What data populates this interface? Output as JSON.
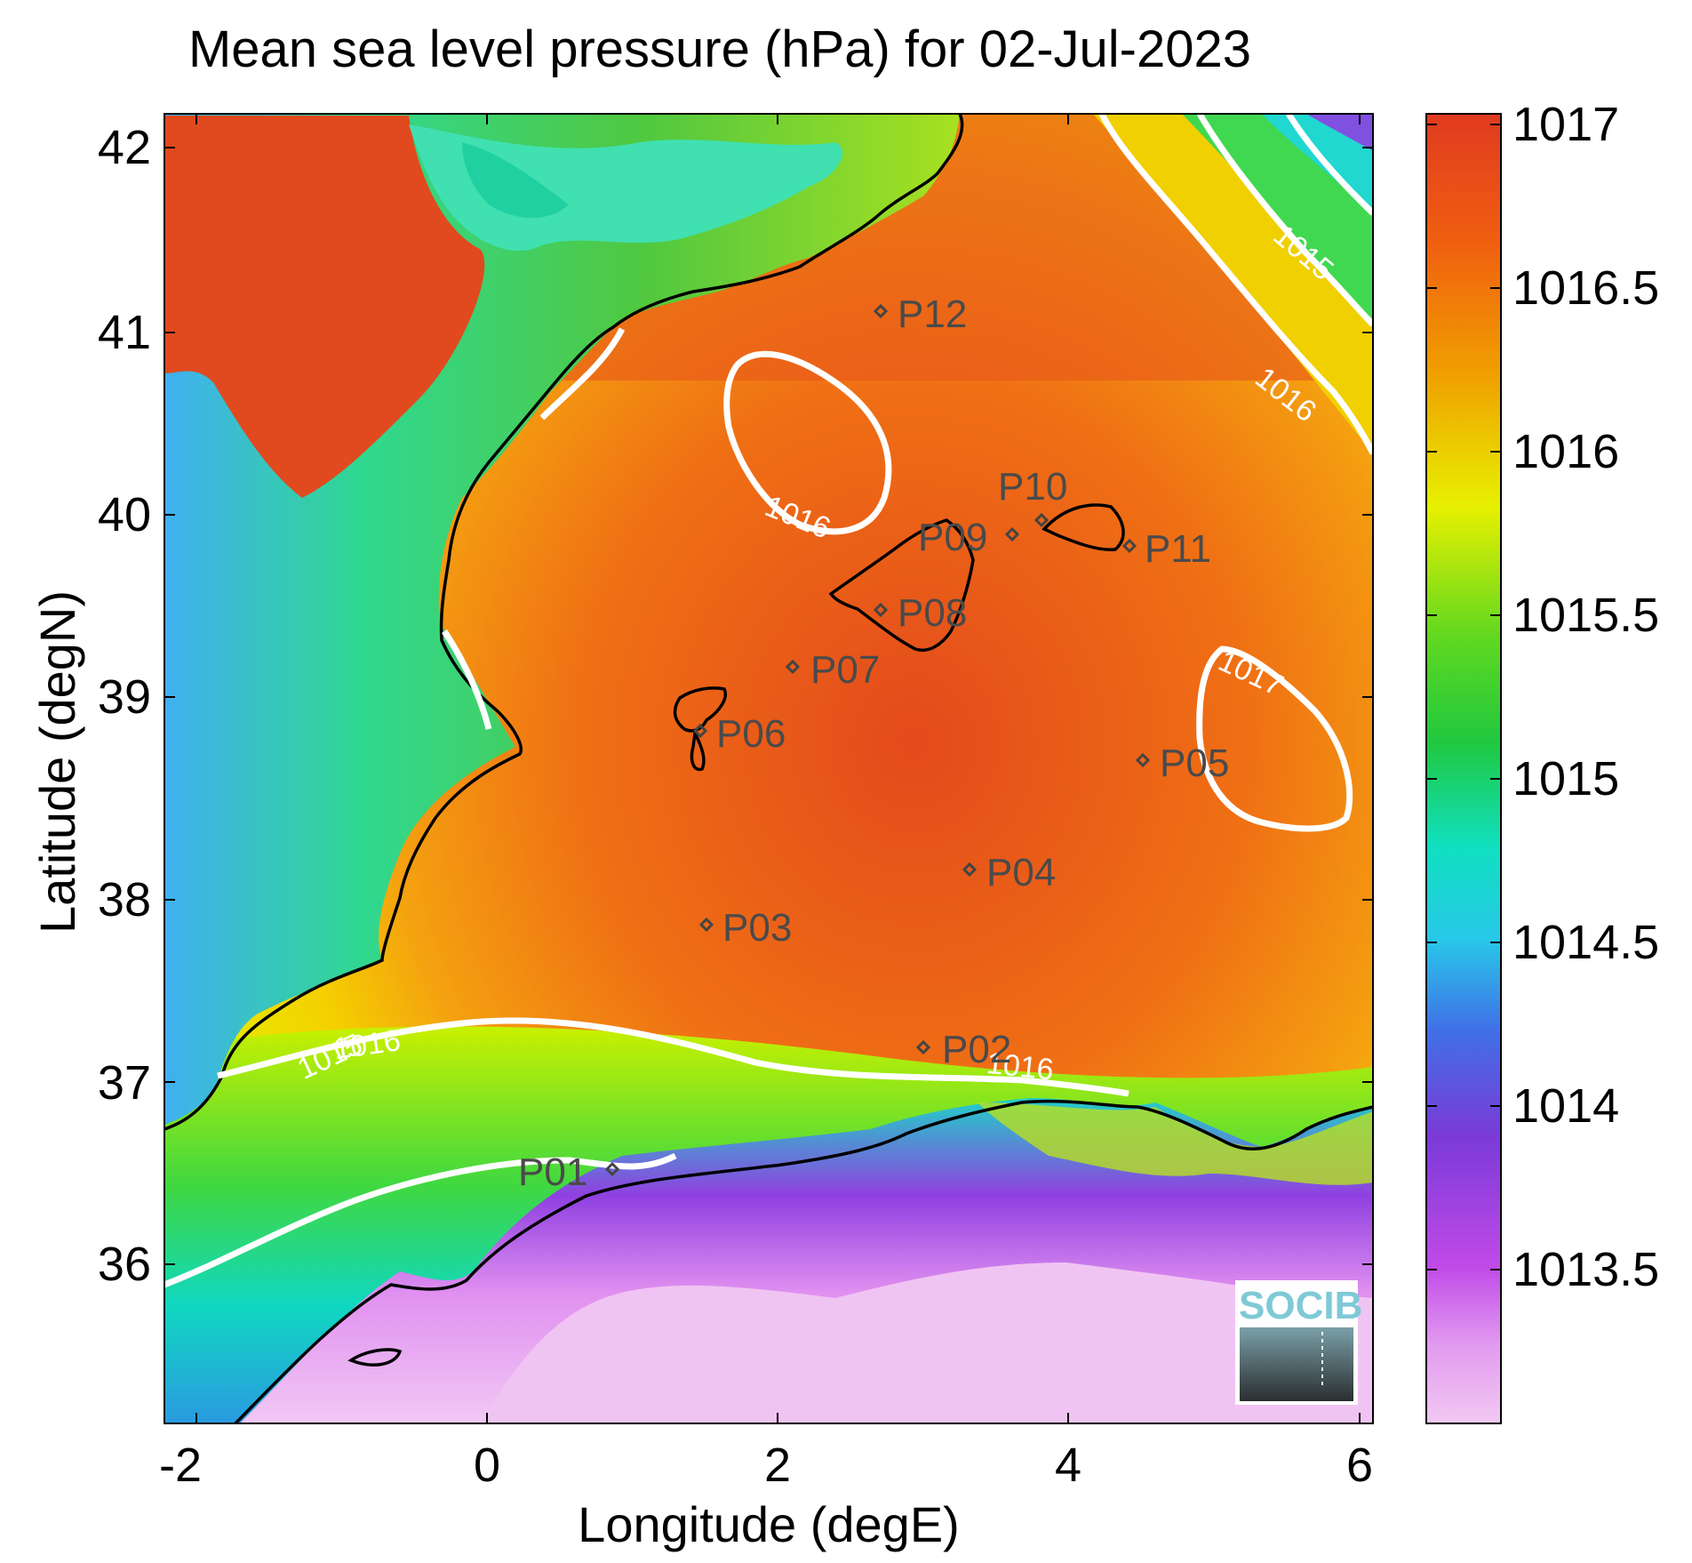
{
  "title": "Mean sea level pressure (hPa) for 02-Jul-2023",
  "xlabel": "Longitude (degE)",
  "ylabel": "Latitude (degN)",
  "x_ticks": [
    "-2",
    "0",
    "2",
    "4",
    "6"
  ],
  "y_ticks": [
    "36",
    "37",
    "38",
    "39",
    "40",
    "41",
    "42"
  ],
  "colorbar": {
    "ticks": [
      "1017",
      "1016.5",
      "1016",
      "1015.5",
      "1015",
      "1014.5",
      "1014",
      "1013.5"
    ],
    "min": 1013.05,
    "max": 1017.05
  },
  "contour_labels": [
    "1015",
    "1016",
    "1016",
    "1016",
    "1016",
    "1017",
    "1015",
    "1016"
  ],
  "stations": [
    {
      "id": "P01",
      "lon": 0.8,
      "lat": 36.5
    },
    {
      "id": "P02",
      "lon": 3.0,
      "lat": 37.15
    },
    {
      "id": "P03",
      "lon": 1.5,
      "lat": 37.8
    },
    {
      "id": "P04",
      "lon": 3.3,
      "lat": 38.1
    },
    {
      "id": "P05",
      "lon": 4.5,
      "lat": 38.7
    },
    {
      "id": "P06",
      "lon": 1.45,
      "lat": 38.85
    },
    {
      "id": "P07",
      "lon": 2.1,
      "lat": 39.2
    },
    {
      "id": "P08",
      "lon": 2.7,
      "lat": 39.5
    },
    {
      "id": "P09",
      "lon": 3.6,
      "lat": 39.9
    },
    {
      "id": "P10",
      "lon": 3.8,
      "lat": 40.0
    },
    {
      "id": "P11",
      "lon": 4.4,
      "lat": 39.85
    },
    {
      "id": "P12",
      "lon": 2.7,
      "lat": 41.1
    }
  ],
  "logo": "SOCIB",
  "colors": {
    "high": "#e04a1a",
    "mid": "#f0d400",
    "low": "#f0c0f0",
    "contour": "#ffffff",
    "coast": "#000000"
  }
}
